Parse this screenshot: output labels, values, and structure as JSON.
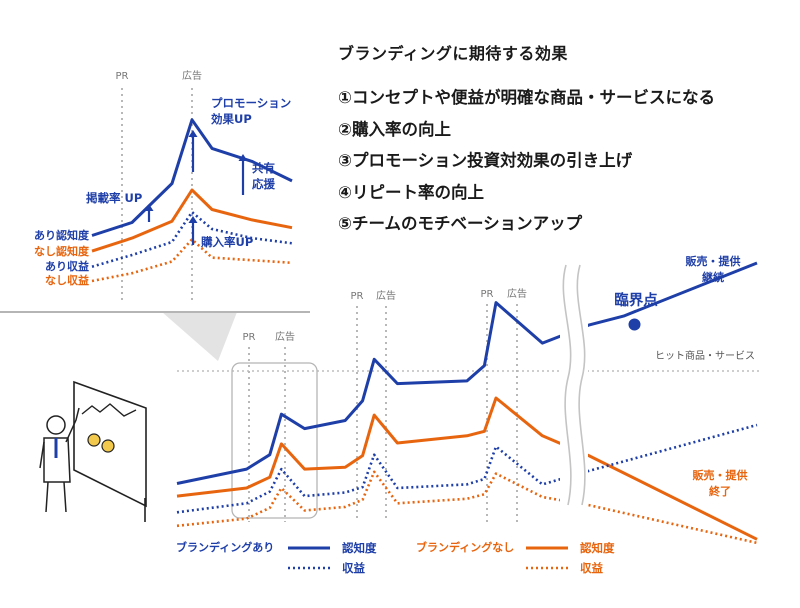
{
  "effects": {
    "heading": "ブランディングに期待する効果",
    "items": [
      "①コンセプトや便益が明確な商品・サービスになる",
      "②購入率の向上",
      "③プロモーション投資対効果の引き上げ",
      "④リピート率の向上",
      "⑤チームのモチベーションアップ"
    ]
  },
  "colors": {
    "with_branding": "#1f3fa8",
    "without_branding": "#e8650f",
    "guide": "#b8b8b8",
    "figure": "#222222"
  },
  "chart_data": [
    {
      "type": "line",
      "panel": "zoom",
      "x_markers": [
        "PR",
        "広告"
      ],
      "annotations": {
        "promo": "プロモーション",
        "promo2": "効果UP",
        "keisai": "掲載率 UP",
        "kyoyu": "共有",
        "kyoyu2": "応援",
        "konyu": "購入率UP"
      },
      "series": [
        {
          "name": "あり認知度",
          "color": "#1f3fa8",
          "style": "solid",
          "x": [
            0,
            2,
            4,
            5,
            6,
            8,
            10
          ],
          "y": [
            3.5,
            4.5,
            7.5,
            12.4,
            10.2,
            9.2,
            7.7
          ]
        },
        {
          "name": "なし認知度",
          "color": "#e8650f",
          "style": "solid",
          "x": [
            0,
            2,
            4,
            5,
            6,
            8,
            10
          ],
          "y": [
            2.3,
            3.3,
            4.6,
            7.0,
            5.5,
            4.7,
            4.1
          ]
        },
        {
          "name": "あり収益",
          "color": "#1f3fa8",
          "style": "dotted",
          "x": [
            0,
            2,
            4,
            5,
            6,
            8,
            10
          ],
          "y": [
            1.1,
            2.0,
            3.0,
            5.3,
            4.0,
            3.3,
            2.9
          ]
        },
        {
          "name": "なし収益",
          "color": "#e8650f",
          "style": "dotted",
          "x": [
            0,
            2,
            4,
            5,
            6,
            8,
            10
          ],
          "y": [
            0.0,
            0.6,
            1.5,
            3.2,
            1.8,
            1.6,
            1.4
          ]
        }
      ]
    },
    {
      "type": "line",
      "panel": "main",
      "x_markers": [
        "PR",
        "広告",
        "PR",
        "広告",
        "PR",
        "広告"
      ],
      "threshold_label": "ヒット商品・サービス",
      "critical_point": "臨界点",
      "end_labels": {
        "continue": "販売・提供",
        "continue2": "継続",
        "end": "販売・提供",
        "end2": "終了"
      },
      "legend": {
        "with": "ブランディングあり",
        "without": "ブランディングなし",
        "awareness": "認知度",
        "revenue": "収益"
      },
      "series": [
        {
          "name": "ブランディングあり 認知度",
          "color": "#1f3fa8",
          "style": "solid",
          "x": [
            0,
            12,
            16,
            18,
            22,
            29,
            32,
            34,
            38,
            50,
            53,
            55,
            63,
            71,
            77,
            100
          ],
          "y": [
            0.5,
            2.1,
            3.7,
            8.2,
            6.6,
            7.5,
            9.7,
            14.3,
            11.6,
            11.9,
            13.6,
            20.6,
            16.1,
            18.1,
            19.1,
            25.0
          ]
        },
        {
          "name": "ブランディングなし 認知度",
          "color": "#e8650f",
          "style": "solid",
          "x": [
            0,
            12,
            16,
            18,
            22,
            29,
            32,
            34,
            38,
            50,
            53,
            55,
            63,
            71,
            100
          ],
          "y": [
            -0.9,
            0.0,
            1.2,
            4.9,
            2.1,
            2.3,
            3.6,
            8.1,
            5.0,
            5.8,
            6.3,
            10.0,
            5.8,
            3.6,
            -5.7
          ]
        },
        {
          "name": "ブランディングあり 収益",
          "color": "#1f3fa8",
          "style": "dotted",
          "x": [
            0,
            12,
            16,
            18,
            22,
            29,
            32,
            34,
            38,
            50,
            53,
            55,
            63,
            71,
            100
          ],
          "y": [
            -2.7,
            -1.7,
            -0.4,
            2.1,
            -0.9,
            -0.5,
            0.1,
            3.7,
            0.0,
            0.4,
            1.0,
            4.6,
            0.4,
            1.9,
            7.0
          ]
        },
        {
          "name": "ブランディングなし 収益",
          "color": "#e8650f",
          "style": "dotted",
          "x": [
            0,
            12,
            16,
            18,
            22,
            29,
            32,
            34,
            38,
            50,
            53,
            55,
            63,
            71,
            100
          ],
          "y": [
            -4.2,
            -3.4,
            -2.2,
            0.0,
            -2.5,
            -2.1,
            -1.3,
            1.8,
            -1.7,
            -1.2,
            -0.7,
            1.6,
            -1.0,
            -1.9,
            -6.1
          ]
        }
      ]
    }
  ]
}
